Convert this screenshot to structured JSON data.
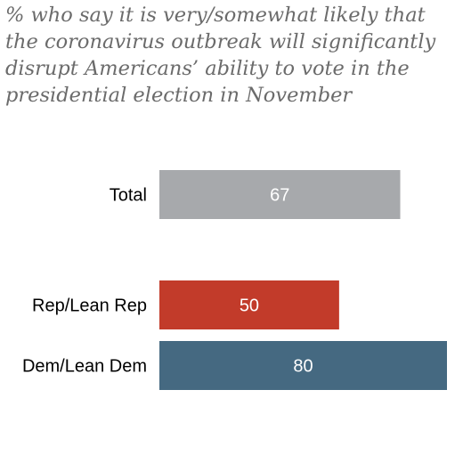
{
  "chart_data": {
    "type": "bar",
    "orientation": "horizontal",
    "subtitle": "% who say it is very/somewhat likely that the coronavirus outbreak will significantly disrupt Americans’ ability to vote in the presidential election in November",
    "categories": [
      "Total",
      "Rep/Lean Rep",
      "Dem/Lean Dem"
    ],
    "values": [
      67,
      50,
      80
    ],
    "value_labels": [
      "67",
      "50",
      "80"
    ],
    "colors": [
      "#a7a9ac",
      "#c23b2a",
      "#456981"
    ],
    "xlim": [
      0,
      80
    ],
    "grid": false,
    "legend": "none"
  }
}
